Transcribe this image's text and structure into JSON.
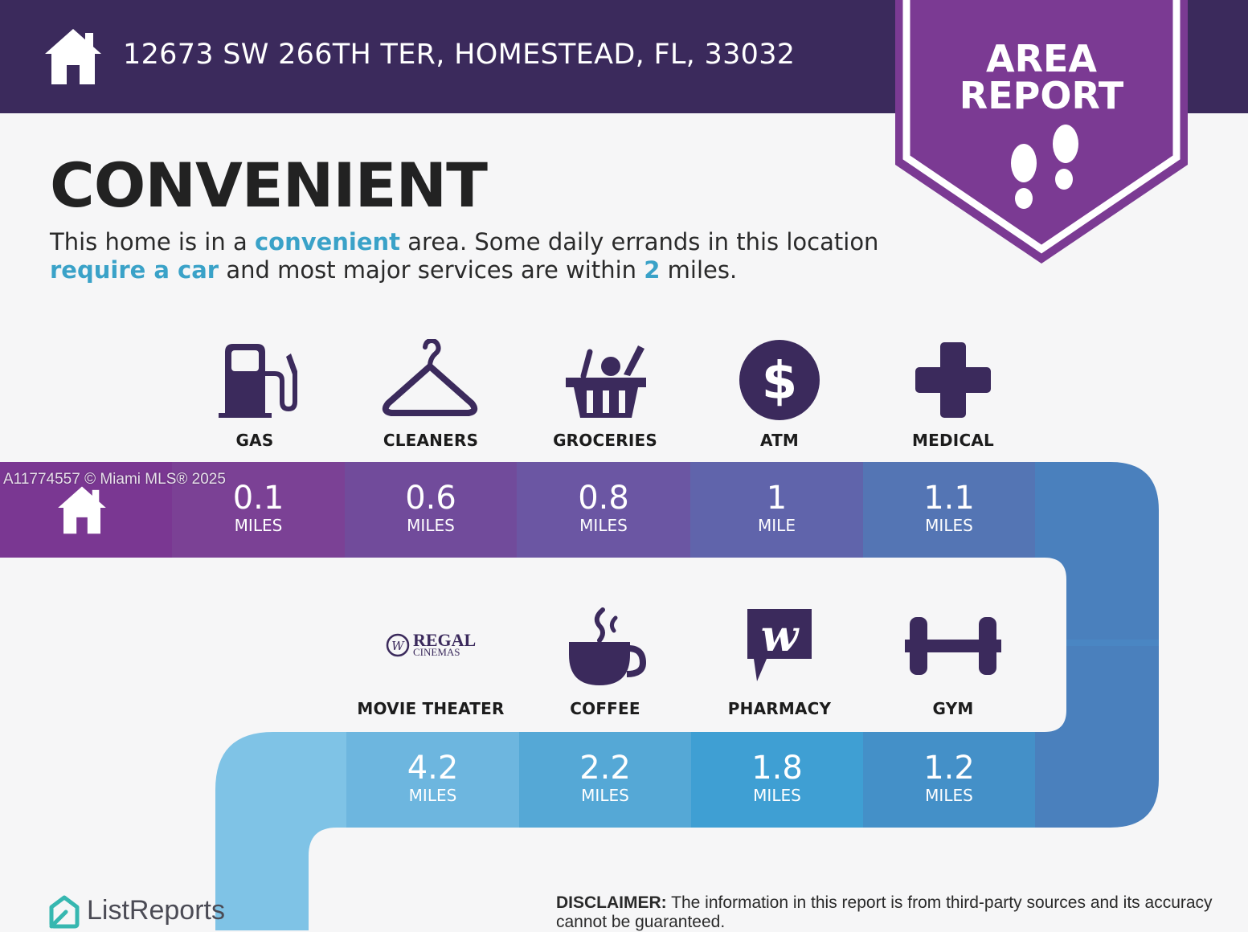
{
  "header": {
    "address": "12673 SW 266TH TER, HOMESTEAD, FL, 33032",
    "badge_line1": "AREA",
    "badge_line2": "REPORT"
  },
  "main": {
    "title": "CONVENIENT",
    "desc": {
      "p1": "This home is in a ",
      "h1": "convenient",
      "p2": " area. Some daily errands in this location ",
      "h2": "require a car",
      "p3": " and most major services are within ",
      "h3": "2",
      "p4": " miles."
    }
  },
  "row1": [
    {
      "label": "GAS",
      "value": "0.1",
      "unit": "MILES",
      "icon": "gas-pump-icon"
    },
    {
      "label": "CLEANERS",
      "value": "0.6",
      "unit": "MILES",
      "icon": "hanger-icon"
    },
    {
      "label": "GROCERIES",
      "value": "0.8",
      "unit": "MILES",
      "icon": "grocery-basket-icon"
    },
    {
      "label": "ATM",
      "value": "1",
      "unit": "MILE",
      "icon": "dollar-icon"
    },
    {
      "label": "MEDICAL",
      "value": "1.1",
      "unit": "MILES",
      "icon": "medical-cross-icon"
    }
  ],
  "row2": [
    {
      "label": "MOVIE THEATER",
      "value": "4.2",
      "unit": "MILES",
      "icon": "regal-cinemas-logo"
    },
    {
      "label": "COFFEE",
      "value": "2.2",
      "unit": "MILES",
      "icon": "coffee-cup-icon"
    },
    {
      "label": "PHARMACY",
      "value": "1.8",
      "unit": "MILES",
      "icon": "walgreens-logo"
    },
    {
      "label": "GYM",
      "value": "1.2",
      "unit": "MILES",
      "icon": "dumbbell-icon"
    }
  ],
  "regal": {
    "line1": "REGAL",
    "line2": "CINEMAS"
  },
  "watermark": "A11774557 © Miami MLS® 2025",
  "footer": {
    "brand": "ListReports",
    "disclaimer_label": "DISCLAIMER:",
    "disclaimer_text": " The information in this report is from third-party sources and its accuracy cannot be guaranteed."
  },
  "colors": {
    "header_bg": "#3b2a5c",
    "badge": "#7b3a93",
    "highlight": "#3aa2c8",
    "icon": "#3b2a5c"
  }
}
